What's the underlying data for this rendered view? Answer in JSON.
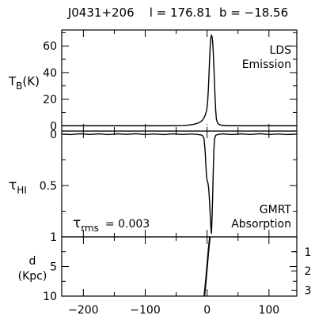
{
  "chart_data": [
    {
      "panel": "emission",
      "type": "line",
      "title": "J0431+206    l = 176.81  b = −18.56",
      "ylabel": "T_B(K)",
      "ylabel_main": "T",
      "ylabel_sub": "B",
      "ylabel_tail": "(K)",
      "annotation_lines": [
        "LDS",
        "Emission"
      ],
      "xlim": [
        -235,
        145
      ],
      "ylim": [
        -4,
        72
      ],
      "yticks": [
        0,
        20,
        40,
        60
      ],
      "ytick_labels": [
        "0",
        "20",
        "40",
        "60"
      ],
      "series": [
        {
          "x": [
            -235,
            -150,
            -100,
            -60,
            -40,
            -30,
            -22,
            -16,
            -12,
            -9,
            -7,
            -5,
            -3,
            -1,
            0,
            1,
            2,
            3,
            4,
            5,
            6,
            7,
            8,
            9,
            10,
            11,
            12,
            13,
            14,
            15,
            17,
            20,
            25,
            35,
            60,
            100,
            145
          ],
          "y": [
            0,
            0,
            0,
            0,
            0.2,
            0.5,
            1,
            1.8,
            2.5,
            3.5,
            4.5,
            6,
            8,
            11,
            14,
            19,
            27,
            38,
            50,
            60,
            66,
            68,
            67,
            63,
            55,
            44,
            32,
            20,
            11,
            5,
            2,
            0.8,
            0.3,
            0,
            0,
            0,
            0
          ]
        }
      ],
      "baseline_gaps": [
        [
          -20,
          -15
        ],
        [
          -10,
          -6
        ],
        [
          -2,
          2
        ],
        [
          9,
          15
        ]
      ]
    },
    {
      "panel": "absorption",
      "type": "line",
      "ylabel": "τ_HI",
      "ylabel_main": "τ",
      "ylabel_sub": "HI",
      "rms_label_main": "τ",
      "rms_label_sub": "rms",
      "rms_label_value": "= 0.003",
      "annotation_lines": [
        "GMRT",
        "Absorption"
      ],
      "xlim": [
        -235,
        145
      ],
      "ylim": [
        1,
        -0.03
      ],
      "y_inverted": true,
      "yticks": [
        0,
        0.5,
        1
      ],
      "ytick_labels": [
        "0",
        "0.5",
        "1"
      ],
      "series": [
        {
          "x": [
            -235,
            -220,
            -205,
            -190,
            -175,
            -160,
            -145,
            -130,
            -115,
            -100,
            -85,
            -70,
            -55,
            -40,
            -25,
            -15,
            -8,
            -5,
            -3,
            -2,
            -1,
            0,
            1,
            1.5,
            2,
            3,
            4,
            5,
            6,
            7,
            8,
            9,
            10,
            11,
            12,
            14,
            18,
            25,
            40,
            55,
            70,
            85,
            100,
            115,
            130,
            145
          ],
          "y": [
            0,
            0.004,
            -0.004,
            0.003,
            -0.003,
            0.004,
            -0.003,
            0.002,
            -0.004,
            0.003,
            -0.002,
            0.004,
            -0.003,
            0.003,
            -0.002,
            0.003,
            0.01,
            0.04,
            0.18,
            0.3,
            0.4,
            0.45,
            0.47,
            0.48,
            0.5,
            0.56,
            0.66,
            0.78,
            0.9,
            0.97,
            0.82,
            0.6,
            0.35,
            0.15,
            0.05,
            0.01,
            0.003,
            -0.003,
            0.004,
            -0.003,
            0.003,
            -0.004,
            0.003,
            -0.002,
            0.004,
            0
          ]
        }
      ]
    },
    {
      "panel": "distance",
      "type": "line",
      "ylabel_top": "d",
      "ylabel_bottom": "(Kpc)",
      "xlim": [
        -235,
        145
      ],
      "ylim": [
        10,
        0
      ],
      "y_inverted": true,
      "yticks": [
        5,
        10
      ],
      "ytick_labels": [
        "5",
        "10"
      ],
      "right_ticks": [
        1,
        2,
        3
      ],
      "right_tick_labels": [
        "1",
        "2",
        "3"
      ],
      "xticks": [
        -200,
        -100,
        0,
        100
      ],
      "xtick_labels": [
        "−200",
        "−100",
        "0",
        "100"
      ],
      "series": [
        {
          "x": [
            -4.5,
            -3,
            -1.5,
            0,
            1.5,
            2.5,
            3.5,
            4.5
          ],
          "y": [
            10,
            8.5,
            6.8,
            5,
            3.2,
            2,
            1,
            0
          ]
        }
      ]
    }
  ]
}
